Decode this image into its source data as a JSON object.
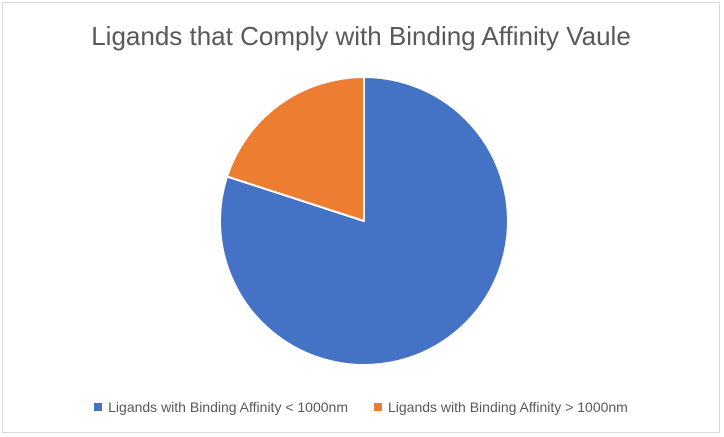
{
  "chart_data": {
    "type": "pie",
    "title": "Ligands that Comply with Binding Affinity Vaule",
    "categories": [
      "Ligands with Binding Affinity < 1000nm",
      "Ligands with Binding Affinity > 1000nm"
    ],
    "values": [
      80,
      20
    ],
    "colors": [
      "#4472c4",
      "#ed7d31"
    ],
    "start_angle_deg": 0,
    "direction": "clockwise",
    "legend_position": "bottom"
  }
}
